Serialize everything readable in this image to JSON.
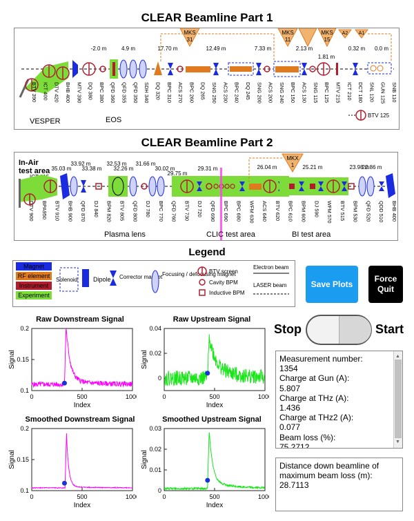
{
  "part1_title": "CLEAR Beamline Part 1",
  "part2_title": "CLEAR Beamline Part 2",
  "legend_title": "Legend",
  "part1": {
    "kly_labels": [
      {
        "top": "MKS",
        "bottom": "31"
      },
      {
        "top": "MKS",
        "bottom": "11"
      },
      {
        "top": "MKS",
        "bottom": "15"
      }
    ],
    "extra_tri_labels": [
      "A2",
      "A1",
      "A0"
    ],
    "distances": [
      "-2.0 m",
      "4.9 m",
      "17.70 m",
      "12.49 m",
      "7.33 m",
      "2.13 m",
      "1.81 m",
      "0.32 m",
      "0.0 m"
    ],
    "element_labels": [
      "BTV 390",
      "ICT 400",
      "DTV 420",
      "BHB 400",
      "MTV 390",
      "DQ 380",
      "BPC 380",
      "QFD 360",
      "QFD 355",
      "QFD 350",
      "SDH 340",
      "DQ 320",
      "BPC 310",
      "ACS 270",
      "BPC 260",
      "DQ 265",
      "SNG 250",
      "ACS 230",
      "BPC 240",
      "DQ 245",
      "SNG 200",
      "ACS 200",
      "SNG 240",
      "BPC 150",
      "ACS 130",
      "SNG 115",
      "BPC 125",
      "MTV 215",
      "ICT 210",
      "DCT 180",
      "SNL 120",
      "GUN 125",
      "SNB 110"
    ],
    "area_labels": [
      "VESPER",
      "EOS"
    ],
    "btv_gun": "BTV 125"
  },
  "part2": {
    "inair_label": "In-Air",
    "test_area_label": "test area",
    "ict_label": "ICT 915",
    "kly": {
      "top": "MKX",
      "bottom": "1"
    },
    "distances": [
      "35.03 m",
      "33.92 m",
      "33.38 m",
      "32.53 m",
      "32.26 m",
      "31.66 m",
      "30.02 m",
      "29.75 m",
      "29.31 m",
      "26.04 m",
      "25.21 m",
      "23.98 m",
      "22.86 m"
    ],
    "element_labels": [
      "DTV 900",
      "BPA950",
      "BTV 910",
      "BHB 900",
      "QFD 870",
      "DJ 840",
      "BPM 820",
      "BTV 805",
      "QFD 800",
      "DJ 780",
      "BPC 770",
      "QFD 760",
      "BTV 730",
      "DJ 720",
      "QFD 690",
      "BPC 690",
      "BPC 680",
      "WFM 630",
      "ACS 640",
      "BTV 620",
      "BPC 610",
      "BPM 600",
      "DJ 590",
      "WFM 570",
      "BTV 515",
      "BPM 530",
      "QFD 520",
      "QDD 510",
      "BHB 400"
    ],
    "area_labels": [
      "Plasma lens",
      "CLIC test area",
      "BI test area"
    ]
  },
  "legend": {
    "magnet": "Magnet",
    "rf": "RF element",
    "instrument": "Instrument",
    "experiment": "Experiment",
    "solenoid": "Solenoid",
    "dipole": "Dipole",
    "corrector": "Corrector magnet",
    "focusing": "Focusing / defocusing magnet",
    "btv": "BTV screen",
    "cavity_bpm": "Cavity BPM",
    "inductive_bpm": "Inductive BPM",
    "electron_beam": "Electron beam",
    "laser_beam": "LASER beam"
  },
  "buttons": {
    "save": "Save Plots",
    "quit": "Force Quit"
  },
  "toggle": {
    "stop": "Stop",
    "start": "Start"
  },
  "info": {
    "measurement_label": "Measurement number:",
    "measurement_value": "1354",
    "charge_gun_label": "Charge at Gun (A):",
    "charge_gun_value": "5.807",
    "charge_thz_label": "Charge at THz (A):",
    "charge_thz_value": "1.436",
    "charge_thz2_label": "Charge at THz2 (A):",
    "charge_thz2_value": "0.077",
    "beam_loss_label": "Beam loss (%):",
    "beam_loss_value": "75.2712"
  },
  "distance_box": {
    "label": "Distance down beamline of maximum beam loss (m):",
    "value": "28.7113"
  },
  "colors": {
    "magnet": "#1b2be0",
    "rf": "#e07a1e",
    "instrument": "#b01e2e",
    "experiment": "#7ddc3a",
    "downstream": "#ff00ff",
    "upstream": "#19e619",
    "marker": "#1a33d6",
    "save": "#1a9cf0"
  },
  "chart_data": [
    {
      "type": "line",
      "title": "Raw Downstream Signal",
      "xlabel": "Index",
      "ylabel": "Signal",
      "xlim": [
        0,
        1000
      ],
      "ylim": [
        0.1,
        0.2
      ],
      "xticks": [
        "0",
        "500",
        "1000"
      ],
      "yticks": [
        "0.1",
        "0.15",
        "0.2"
      ],
      "baseline": 0.11,
      "noise": 0.004,
      "peak_x": 340,
      "peak_y": 0.2,
      "decay": 40,
      "tail": 0.012,
      "marker": {
        "x": 325,
        "y": 0.112
      }
    },
    {
      "type": "line",
      "title": "Raw Upstream Signal",
      "xlabel": "Index",
      "ylabel": "Signal",
      "xlim": [
        0,
        1000
      ],
      "ylim": [
        -0.01,
        0.04
      ],
      "xticks": [
        "0",
        "500",
        "1000"
      ],
      "yticks": [
        "0",
        "0.02",
        "0.04"
      ],
      "baseline": 0.0,
      "noise": 0.006,
      "peak_x": 445,
      "peak_y": 0.027,
      "decay": 60,
      "tail": 0.008,
      "marker": {
        "x": 430,
        "y": 0.004
      }
    },
    {
      "type": "line",
      "title": "Smoothed Downstream Signal",
      "xlabel": "Index",
      "ylabel": "Signal",
      "xlim": [
        0,
        1000
      ],
      "ylim": [
        0.1,
        0.2
      ],
      "xticks": [
        "0",
        "500",
        "1000"
      ],
      "yticks": [
        "0.1",
        "0.15",
        "0.2"
      ],
      "baseline": 0.1045,
      "noise": 0.0006,
      "peak_x": 345,
      "peak_y": 0.19,
      "decay": 22,
      "tail": 0.004,
      "marker": {
        "x": 325,
        "y": 0.112
      }
    },
    {
      "type": "line",
      "title": "Smoothed Upstream Signal",
      "xlabel": "Index",
      "ylabel": "Signal",
      "xlim": [
        0,
        1000
      ],
      "ylim": [
        0,
        0.03
      ],
      "xticks": [
        "0",
        "500",
        "1000"
      ],
      "yticks": [
        "0",
        "0.01",
        "0.02",
        "0.03"
      ],
      "baseline": 0.001,
      "noise": 0.0005,
      "peak_x": 445,
      "peak_y": 0.027,
      "decay": 35,
      "tail": 0.003,
      "marker": {
        "x": 430,
        "y": 0.005
      }
    }
  ]
}
